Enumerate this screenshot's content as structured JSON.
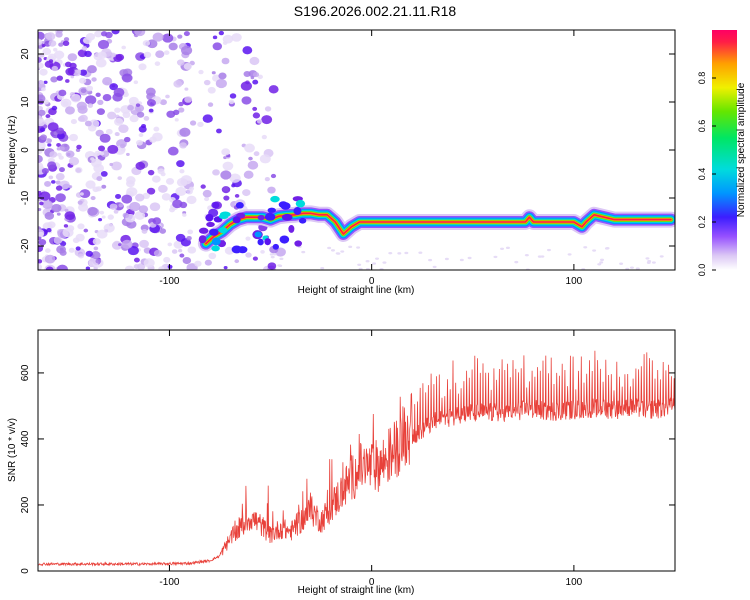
{
  "title": "S196.2026.002.21.11.R18",
  "chart_data": [
    {
      "type": "heatmap",
      "title": "S196.2026.002.21.11.R18",
      "xlabel": "Height of straight line (km)",
      "ylabel": "Frequency (Hz)",
      "xlim": [
        -165,
        150
      ],
      "ylim": [
        -25,
        25
      ],
      "x_ticks": [
        -100,
        0,
        100
      ],
      "y_ticks": [
        -20,
        -10,
        0,
        10,
        20
      ],
      "ridge": {
        "description_points_x": [
          -82,
          -78,
          -74,
          -70,
          -66,
          -62,
          -58,
          -54,
          -50,
          -46,
          -42,
          -38,
          -34,
          -30,
          -26,
          -22,
          -18,
          -14,
          -10,
          -6,
          -2,
          0,
          20,
          40,
          60,
          76,
          78,
          80,
          90,
          100,
          104,
          106,
          110,
          120,
          130,
          140,
          148
        ],
        "description_points_y": [
          -19.5,
          -18,
          -17,
          -15.5,
          -14.5,
          -14,
          -14,
          -14,
          -14.5,
          -13.8,
          -13.6,
          -13.5,
          -13.2,
          -13.2,
          -13.5,
          -13.5,
          -15,
          -17.5,
          -16,
          -15,
          -15,
          -15,
          -15,
          -15,
          -15,
          -15,
          -14,
          -15,
          -15,
          -15,
          -16,
          -15,
          -13.5,
          -14.5,
          -14.5,
          -14.5,
          -14.5
        ]
      },
      "colorbar": {
        "label": "Normalized spectral amplitude",
        "range": [
          0.0,
          1.0
        ],
        "ticks": [
          "0.0",
          "0.2",
          "0.4",
          "0.6",
          "0.8"
        ]
      }
    },
    {
      "type": "line",
      "xlabel": "Height of straight line (km)",
      "ylabel": "SNR (10 * v/v)",
      "xlim": [
        -165,
        150
      ],
      "ylim": [
        0,
        730
      ],
      "x_ticks": [
        -100,
        0,
        100
      ],
      "y_ticks": [
        0,
        200,
        400,
        600
      ],
      "color": "#e8413a",
      "series": [
        {
          "name": "SNR",
          "x": [
            -165,
            -140,
            -110,
            -90,
            -80,
            -75,
            -70,
            -65,
            -60,
            -55,
            -50,
            -45,
            -40,
            -35,
            -30,
            -25,
            -20,
            -15,
            -10,
            -5,
            0,
            5,
            10,
            15,
            20,
            25,
            30,
            35,
            40,
            45,
            50,
            60,
            70,
            80,
            90,
            100,
            110,
            120,
            130,
            140,
            150
          ],
          "values": [
            20,
            20,
            20,
            22,
            30,
            45,
            90,
            120,
            150,
            130,
            100,
            120,
            110,
            140,
            170,
            140,
            180,
            220,
            260,
            290,
            290,
            300,
            330,
            370,
            400,
            420,
            440,
            450,
            460,
            470,
            470,
            470,
            475,
            480,
            475,
            480,
            485,
            480,
            485,
            480,
            490
          ]
        }
      ]
    }
  ]
}
